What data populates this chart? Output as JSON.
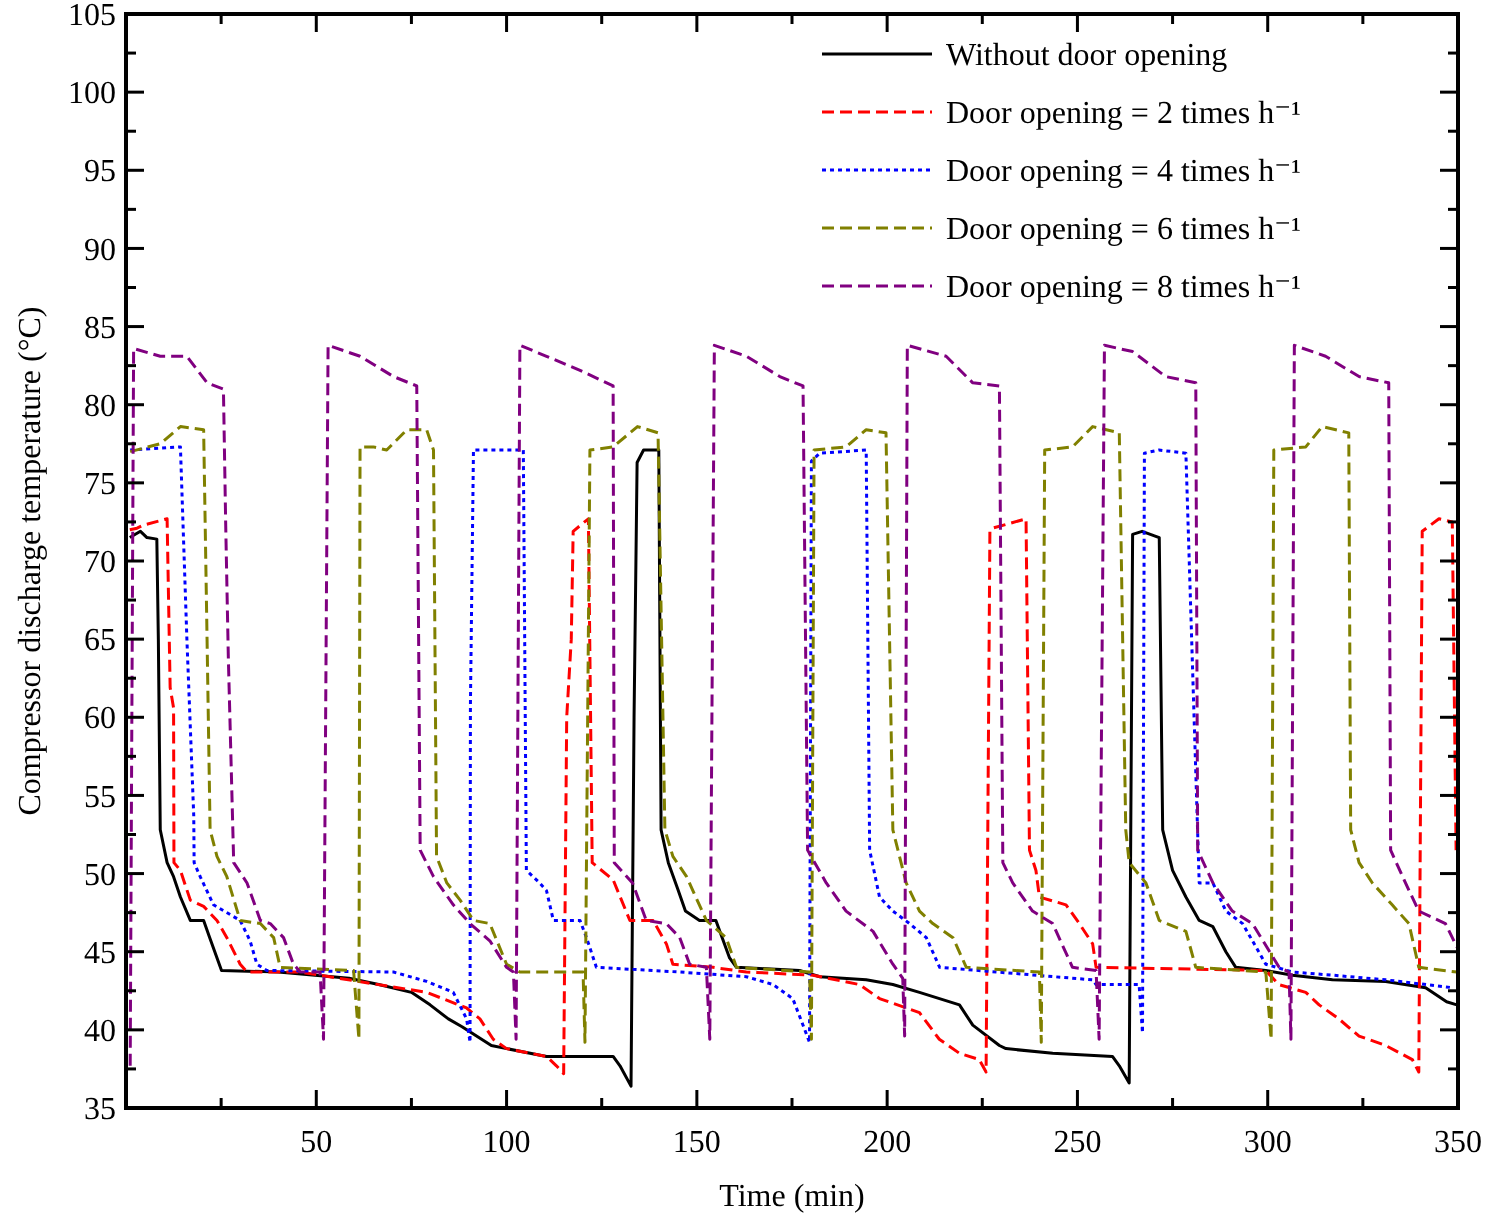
{
  "chart_data": {
    "type": "line",
    "xlabel": "Time (min)",
    "ylabel": "Compressor discharge temperature (°C)",
    "xlim": [
      0,
      350
    ],
    "ylim": [
      35,
      105
    ],
    "xticks": [
      {
        "value": 25,
        "label": null
      },
      50,
      {
        "value": 75,
        "label": null
      },
      100,
      {
        "value": 125,
        "label": null
      },
      150,
      {
        "value": 175,
        "label": null
      },
      200,
      {
        "value": 225,
        "label": null
      },
      250,
      {
        "value": 275,
        "label": null
      },
      300,
      {
        "value": 325,
        "label": null
      },
      350
    ],
    "yticks": [
      35,
      {
        "value": 37.5,
        "label": null
      },
      40,
      {
        "value": 42.5,
        "label": null
      },
      45,
      {
        "value": 47.5,
        "label": null
      },
      50,
      {
        "value": 52.5,
        "label": null
      },
      55,
      {
        "value": 57.5,
        "label": null
      },
      60,
      {
        "value": 62.5,
        "label": null
      },
      65,
      {
        "value": 67.5,
        "label": null
      },
      70,
      {
        "value": 72.5,
        "label": null
      },
      75,
      {
        "value": 77.5,
        "label": null
      },
      80,
      {
        "value": 82.5,
        "label": null
      },
      85,
      {
        "value": 87.5,
        "label": null
      },
      90,
      {
        "value": 92.5,
        "label": null
      },
      95,
      {
        "value": 97.5,
        "label": null
      },
      100,
      {
        "value": 102.5,
        "label": null
      },
      105
    ],
    "grid": false,
    "legend": "top right",
    "marker": "none",
    "series": [
      {
        "name": "Without door opening",
        "color": "#000000",
        "line_style": "solid",
        "x": [
          1,
          3.8,
          5.5,
          8.1,
          8.5,
          9,
          10.8,
          12.5,
          14.3,
          16.9,
          20.4,
          22,
          25.1,
          40,
          58.6,
          66.4,
          75,
          79.9,
          84.7,
          88.3,
          96,
          100,
          110.5,
          128,
          129.8,
          132.7,
          133.5,
          134.3,
          136,
          140,
          140.6,
          142.5,
          145,
          147,
          150.7,
          155,
          158.6,
          160.4,
          177,
          182.3,
          194.5,
          201.5,
          208.5,
          219,
          222.5,
          229.5,
          231.2,
          243.5,
          259.2,
          261,
          263.6,
          264.5,
          267,
          271.5,
          272.4,
          275,
          278.5,
          282,
          285.6,
          289,
          291.6,
          299.5,
          306.5,
          317,
          331,
          341.5,
          347,
          349.7
        ],
        "values": [
          71.5,
          71.9,
          71.5,
          71.4,
          65,
          52.8,
          50.7,
          49.8,
          48.5,
          47,
          47,
          45.9,
          43.8,
          43.7,
          43.3,
          42.9,
          42.4,
          41.6,
          40.7,
          40.2,
          39,
          38.8,
          38.3,
          38.3,
          37.7,
          36.4,
          60,
          76.3,
          77.1,
          77.1,
          52.8,
          50.7,
          49,
          47.6,
          47,
          47,
          44.6,
          44,
          43.8,
          43.4,
          43.2,
          42.9,
          42.4,
          41.6,
          40.3,
          39,
          38.8,
          38.5,
          38.3,
          37.7,
          36.6,
          71.7,
          71.9,
          71.5,
          52.8,
          50.2,
          48.5,
          47,
          46.6,
          45,
          44,
          43.8,
          43.5,
          43.2,
          43.1,
          42.7,
          41.8,
          41.6
        ]
      },
      {
        "name": "Door opening = 2 times h⁻¹",
        "color": "#ff0000",
        "line_style": "dashed",
        "x": [
          1,
          2.9,
          4.6,
          10.8,
          11.6,
          12.5,
          12.6,
          14.3,
          16.9,
          20.4,
          23.9,
          26.5,
          30,
          31.8,
          45.8,
          79,
          89.5,
          93,
          96.5,
          100,
          110.5,
          113.1,
          115,
          115.8,
          117,
          117.5,
          121.5,
          122.5,
          128,
          132.4,
          138.5,
          142,
          143.7,
          154.2,
          163,
          180.5,
          192.7,
          198,
          208.5,
          213.7,
          219,
          224.2,
          226,
          227,
          227.7,
          236.5,
          237.4,
          239.1,
          240,
          247,
          250.5,
          254,
          254.9,
          299.5,
          302.9,
          310,
          313.5,
          318.7,
          324,
          331,
          338,
          339.7,
          340.6,
          345,
          348.5,
          349.5
        ],
        "values": [
          72,
          72.1,
          72.3,
          72.7,
          61.9,
          60.6,
          50.7,
          50.2,
          48.3,
          47.9,
          47,
          45.9,
          44.2,
          43.7,
          43.7,
          42.4,
          41.4,
          40.7,
          39.4,
          38.8,
          38.3,
          37.7,
          37.2,
          60,
          65,
          71.9,
          72.7,
          50.7,
          49.6,
          47,
          47,
          45.5,
          44.2,
          44,
          43.7,
          43.5,
          42.9,
          42,
          41.1,
          39.4,
          38.5,
          38.1,
          37.3,
          71.9,
          72.1,
          72.7,
          51.5,
          50.2,
          48.5,
          48,
          46.8,
          45.5,
          44,
          43.8,
          42.9,
          42.4,
          41.6,
          40.7,
          39.6,
          39,
          38.1,
          37.3,
          71.9,
          72.7,
          72.5,
          51.5
        ]
      },
      {
        "name": "Door opening = 4 times h⁻¹",
        "color": "#0000ff",
        "line_style": "dotted",
        "x": [
          1.1,
          14.3,
          16,
          17.8,
          17.9,
          19.5,
          23,
          30,
          32.6,
          34.4,
          37,
          70.3,
          79,
          86,
          89.5,
          90.4,
          90.5,
          91.3,
          100,
          104.4,
          105.2,
          108.7,
          110.5,
          112.3,
          119.3,
          121,
          123.6,
          145.5,
          163,
          170,
          175.2,
          177.9,
          179.6,
          180.1,
          182.3,
          194.5,
          195.4,
          198,
          201.5,
          205.9,
          210.3,
          213.8,
          254,
          254.9,
          266.2,
          267.1,
          267.6,
          271.4,
          278.5,
          282,
          285.6,
          289,
          293.4,
          299.5,
          306.5,
          317,
          331,
          348.5
        ],
        "values": [
          77.1,
          77.3,
          65,
          53.7,
          50.7,
          49.8,
          48,
          47,
          45.7,
          44.2,
          43.8,
          43.7,
          43.1,
          42.4,
          40.7,
          39.2,
          60.8,
          77.1,
          77.1,
          77.1,
          50.2,
          49.4,
          48.9,
          47,
          47,
          45.9,
          44,
          43.7,
          43.4,
          42.9,
          42,
          40.3,
          39.2,
          76.4,
          76.9,
          77.1,
          51.5,
          48.5,
          47.6,
          46.8,
          45.9,
          44,
          43.2,
          42.9,
          42.9,
          39.8,
          76.9,
          77.1,
          76.9,
          49.4,
          49.4,
          47.6,
          46.8,
          44.2,
          43.7,
          43.5,
          43.2,
          42.7
        ]
      },
      {
        "name": "Door opening = 6 times h⁻¹",
        "color": "#808000",
        "line_style": "dashed",
        "x": [
          1.1,
          9,
          14.3,
          20.4,
          21.3,
          22.1,
          23.9,
          26.5,
          30,
          35.3,
          38.8,
          40.5,
          59.8,
          61.2,
          61.5,
          65,
          68.5,
          73.8,
          79,
          80.8,
          81.6,
          84.3,
          87.8,
          91.3,
          95.6,
          100,
          103.5,
          120.1,
          120.6,
          121.9,
          128,
          134.4,
          139.8,
          141.6,
          143.7,
          147.3,
          152.5,
          157.7,
          160.4,
          179.6,
          180.1,
          180.8,
          189.2,
          194.5,
          199.7,
          201.5,
          205,
          208.5,
          212,
          217.3,
          220.8,
          240,
          240.5,
          241.4,
          248.7,
          254,
          261,
          262.7,
          263.6,
          268,
          271.5,
          278.5,
          281.1,
          299.5,
          300.9,
          301.6,
          310,
          314.3,
          321.3,
          321.8,
          324,
          327.5,
          332.7,
          337.1,
          339.7,
          349.7
        ],
        "values": [
          77,
          77.5,
          78.6,
          78.4,
          65,
          52.8,
          51.1,
          49.8,
          47,
          46.8,
          45.9,
          44,
          43.8,
          39.4,
          77.3,
          77.3,
          77.1,
          78.4,
          78.4,
          77.1,
          51.1,
          49.4,
          48.3,
          47,
          46.8,
          44.2,
          43.7,
          43.7,
          39.2,
          77.1,
          77.3,
          78.6,
          78.2,
          52.8,
          51.1,
          49.8,
          47,
          45.9,
          44,
          43.7,
          39.4,
          77.1,
          77.3,
          78.4,
          78.2,
          52.8,
          49.4,
          47.6,
          46.8,
          45.9,
          44,
          43.7,
          39.2,
          77.1,
          77.3,
          78.6,
          78.2,
          52.8,
          50.7,
          49.4,
          47,
          46.3,
          44,
          43.7,
          39.4,
          77.1,
          77.3,
          78.6,
          78.2,
          52.8,
          50.7,
          49.4,
          48,
          46.8,
          44,
          43.7
        ]
      },
      {
        "name": "Door opening = 8 times h⁻¹",
        "color": "#800080",
        "line_style": "dashed",
        "x": [
          1.1,
          2,
          9,
          16,
          21.3,
          25.6,
          26.2,
          26.9,
          28.3,
          31.8,
          35.3,
          37.9,
          41.4,
          44,
          45.8,
          51,
          51.9,
          53.1,
          61.5,
          70.3,
          76.4,
          77.3,
          80.8,
          86,
          90.4,
          95.6,
          100,
          101.8,
          102.5,
          103.5,
          110.5,
          119.3,
          126.3,
          128,
          128.3,
          133.1,
          136.7,
          142,
          145.5,
          148.1,
          152.5,
          153.4,
          154.6,
          163,
          171.8,
          177.9,
          179.1,
          184,
          189.2,
          196.3,
          201.5,
          204.1,
          204.6,
          205.3,
          215.5,
          222.5,
          229.5,
          230.4,
          233,
          238.2,
          243.5,
          248.7,
          254.9,
          255.7,
          257.1,
          264.5,
          273.2,
          281.1,
          281.6,
          285.6,
          290.7,
          296,
          303,
          305.6,
          306.1,
          307,
          315.2,
          324,
          331.8,
          332.3,
          336.2,
          339.7,
          346.7,
          349.7
        ],
        "values": [
          37.7,
          83.6,
          83.1,
          83.1,
          81.4,
          81,
          72.3,
          63.7,
          50.7,
          49.4,
          47,
          46.8,
          45.9,
          44.2,
          43.7,
          43.7,
          39.4,
          83.8,
          83.1,
          81.8,
          81.2,
          51.5,
          49.8,
          48,
          46.8,
          45.7,
          44,
          43.7,
          39.4,
          83.8,
          83.1,
          82.2,
          81.4,
          81.2,
          50.7,
          49.4,
          47,
          46.8,
          45.9,
          44.2,
          44,
          39.4,
          83.8,
          83.1,
          81.8,
          81.2,
          51.5,
          49.4,
          47.6,
          46.3,
          44.2,
          43.3,
          39.6,
          83.8,
          83.1,
          81.4,
          81.2,
          50.7,
          49.4,
          47.6,
          46.8,
          44,
          43.8,
          39.4,
          83.8,
          83.4,
          81.8,
          81.4,
          51.5,
          49.4,
          47.6,
          46.8,
          44,
          43.7,
          39.4,
          83.8,
          83.1,
          81.8,
          81.4,
          51.5,
          49.4,
          47.6,
          46.8,
          45.3
        ]
      }
    ]
  }
}
